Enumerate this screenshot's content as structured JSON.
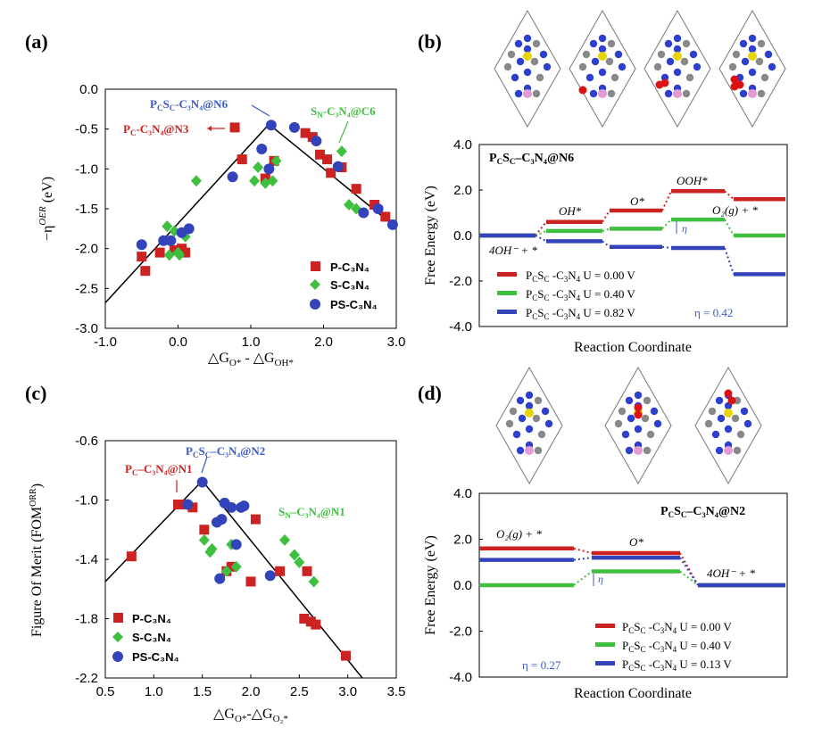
{
  "panel_labels": [
    "(a)",
    "(b)",
    "(c)",
    "(d)"
  ],
  "colors": {
    "red": "#cc2222",
    "green": "#3fbf3f",
    "blue": "#3344bb",
    "darkred": "#b22222",
    "annot_blue": "#3a5bc7"
  },
  "chart_data": [
    {
      "type": "scatter",
      "panel": "(a)",
      "ylabel": "−η",
      "ylabel_sup": "OER",
      "ylabel_unit": "(eV)",
      "xlabel": "△G",
      "xlabel_sub1": "O*",
      "xlabel_mid": " - △G",
      "xlabel_sub2": "OH*",
      "xlim": [
        -1.0,
        3.0
      ],
      "ylim": [
        -3.0,
        0.0
      ],
      "xticks": [
        "-1.0",
        "0.0",
        "1.0",
        "2.0",
        "3.0"
      ],
      "yticks": [
        "0.0",
        "-0.5",
        "-1.0",
        "-1.5",
        "-2.0",
        "-2.5",
        "-3.0"
      ],
      "volcano_line": [
        [
          -1.0,
          -2.68
        ],
        [
          1.25,
          -0.44
        ],
        [
          2.95,
          -1.7
        ]
      ],
      "legend": [
        "P-C₃N₄",
        "S-C₃N₄",
        "PS-C₃N₄"
      ],
      "annotations": [
        {
          "text": "P",
          "sub": "C",
          "rest": "-C₃N₄@N3",
          "color": "#cc2222"
        },
        {
          "text": "P",
          "sub": "C",
          "mid": "S",
          "sub2": "C",
          "rest": "-C₃N₄@N6",
          "color": "#3a5bc7"
        },
        {
          "text": "S",
          "sub": "N",
          "rest": "-C₃N₄@C6",
          "color": "#3fbf3f"
        }
      ],
      "series": [
        {
          "name": "P-C3N4",
          "points": [
            [
              -0.5,
              -2.1
            ],
            [
              -0.45,
              -2.28
            ],
            [
              -0.25,
              -2.05
            ],
            [
              -0.05,
              -2.02
            ],
            [
              0.05,
              -2.0
            ],
            [
              0.1,
              -2.05
            ],
            [
              0.78,
              -0.48
            ],
            [
              0.88,
              -0.88
            ],
            [
              1.2,
              -1.12
            ],
            [
              1.32,
              -0.9
            ],
            [
              1.75,
              -0.55
            ],
            [
              1.85,
              -0.6
            ],
            [
              1.95,
              -0.82
            ],
            [
              2.05,
              -0.88
            ],
            [
              2.1,
              -1.05
            ],
            [
              2.25,
              -0.98
            ],
            [
              2.45,
              -1.25
            ],
            [
              2.7,
              -1.45
            ],
            [
              2.85,
              -1.6
            ]
          ]
        },
        {
          "name": "S-C3N4",
          "points": [
            [
              -0.15,
              -1.72
            ],
            [
              -0.12,
              -2.08
            ],
            [
              -0.05,
              -1.78
            ],
            [
              0.0,
              -2.05
            ],
            [
              0.02,
              -2.08
            ],
            [
              0.1,
              -1.85
            ],
            [
              0.25,
              -1.15
            ],
            [
              1.05,
              -1.15
            ],
            [
              1.1,
              -0.98
            ],
            [
              1.2,
              -1.18
            ],
            [
              1.3,
              -1.15
            ],
            [
              1.35,
              -0.9
            ],
            [
              2.25,
              -0.78
            ],
            [
              2.35,
              -1.45
            ],
            [
              2.45,
              -1.5
            ]
          ]
        },
        {
          "name": "PS-C3N4",
          "points": [
            [
              -0.5,
              -1.95
            ],
            [
              -0.2,
              -1.9
            ],
            [
              -0.1,
              -1.9
            ],
            [
              0.05,
              -1.8
            ],
            [
              0.15,
              -1.75
            ],
            [
              0.75,
              -1.1
            ],
            [
              1.15,
              -0.75
            ],
            [
              1.25,
              -1.0
            ],
            [
              1.28,
              -0.45
            ],
            [
              1.6,
              -0.48
            ],
            [
              1.9,
              -0.65
            ],
            [
              2.2,
              -0.97
            ],
            [
              2.55,
              -1.55
            ],
            [
              2.75,
              -1.5
            ],
            [
              2.95,
              -1.7
            ]
          ]
        }
      ]
    },
    {
      "type": "line",
      "panel": "(b)",
      "title_parts": {
        "a": "P",
        "a_sub": "C",
        "b": "S",
        "b_sub": "C",
        "rest": "–C₃N₄@N6"
      },
      "ylabel": "Free Energy (eV)",
      "xlabel": "Reaction Coordinate",
      "ylim": [
        -4.0,
        4.0
      ],
      "yticks": [
        "4.0",
        "2.0",
        "0.0",
        "-2.0",
        "-4.0"
      ],
      "steps": [
        "4OH⁻ + *",
        "OH*",
        "O*",
        "OOH*",
        "O₂(g) + *"
      ],
      "series": [
        {
          "name": "U = 0.00 V",
          "label_prefix": "P",
          "values": [
            0.0,
            0.6,
            1.1,
            1.95,
            1.6
          ],
          "color": "#cc2222"
        },
        {
          "name": "U = 0.40 V",
          "label_prefix": "P",
          "values": [
            0.0,
            0.2,
            0.3,
            0.7,
            0.0
          ],
          "color": "#3fbf3f"
        },
        {
          "name": "U = 0.82 V",
          "label_prefix": "P",
          "values": [
            0.0,
            -0.25,
            -0.5,
            -0.55,
            -1.7
          ],
          "color": "#3344bb"
        }
      ],
      "legend_labels": [
        "U = 0.00 V",
        "U = 0.40 V",
        "U = 0.82 V"
      ],
      "eta_text": "η = 0.42",
      "eta_symbol": "η"
    },
    {
      "type": "scatter",
      "panel": "(c)",
      "ylabel": "Figure Of Merit (FOM",
      "ylabel_sup": "ORR",
      "ylabel_end": ")",
      "xlabel": "△G",
      "xlabel_sub1": "O*",
      "xlabel_mid": "-△G",
      "xlabel_sub2": "O₂*",
      "xlim": [
        0.5,
        3.5
      ],
      "ylim": [
        -2.2,
        -0.6
      ],
      "xticks": [
        "0.5",
        "1.0",
        "1.5",
        "2.0",
        "2.5",
        "3.0",
        "3.5"
      ],
      "yticks": [
        "-0.6",
        "-1.0",
        "-1.4",
        "-1.8",
        "-2.2"
      ],
      "volcano_line": [
        [
          0.5,
          -1.55
        ],
        [
          1.5,
          -0.87
        ],
        [
          3.15,
          -2.2
        ]
      ],
      "legend": [
        "P-C₃N₄",
        "S-C₃N₄",
        "PS-C₃N₄"
      ],
      "annotations": [
        {
          "text": "P",
          "sub": "C",
          "rest": "–C₃N₄@N1",
          "color": "#cc2222"
        },
        {
          "text": "P",
          "sub": "C",
          "mid": "S",
          "sub2": "C",
          "rest": "–C₃N₄@N2",
          "color": "#3a5bc7"
        },
        {
          "text": "S",
          "sub": "N",
          "rest": "–C₃N₄@N1",
          "color": "#3fbf3f"
        }
      ],
      "series": [
        {
          "name": "P-C3N4",
          "points": [
            [
              0.77,
              -1.38
            ],
            [
              1.25,
              -1.03
            ],
            [
              1.3,
              -1.03
            ],
            [
              1.4,
              -1.05
            ],
            [
              1.52,
              -1.2
            ],
            [
              1.75,
              -1.48
            ],
            [
              1.8,
              -1.45
            ],
            [
              2.0,
              -1.55
            ],
            [
              2.05,
              -1.13
            ],
            [
              2.3,
              -1.48
            ],
            [
              2.58,
              -1.48
            ],
            [
              2.55,
              -1.8
            ],
            [
              2.62,
              -1.82
            ],
            [
              2.67,
              -1.84
            ],
            [
              2.98,
              -2.05
            ]
          ]
        },
        {
          "name": "S-C3N4",
          "points": [
            [
              1.52,
              -1.27
            ],
            [
              1.58,
              -1.35
            ],
            [
              1.6,
              -1.33
            ],
            [
              1.75,
              -1.48
            ],
            [
              1.8,
              -1.3
            ],
            [
              1.85,
              -1.45
            ],
            [
              2.35,
              -1.27
            ],
            [
              2.45,
              -1.37
            ],
            [
              2.5,
              -1.42
            ],
            [
              2.65,
              -1.55
            ]
          ]
        },
        {
          "name": "PS-C3N4",
          "points": [
            [
              1.35,
              -1.03
            ],
            [
              1.5,
              -0.88
            ],
            [
              1.65,
              -1.15
            ],
            [
              1.68,
              -1.53
            ],
            [
              1.7,
              -1.13
            ],
            [
              1.73,
              -1.02
            ],
            [
              1.8,
              -1.05
            ],
            [
              1.85,
              -1.3
            ],
            [
              1.9,
              -1.05
            ],
            [
              1.93,
              -1.04
            ],
            [
              2.2,
              -1.51
            ]
          ]
        }
      ]
    },
    {
      "type": "line",
      "panel": "(d)",
      "title_parts": {
        "a": "P",
        "a_sub": "C",
        "b": "S",
        "b_sub": "C",
        "rest": "–C₃N₄@N2"
      },
      "ylabel": "Free Energy (eV)",
      "xlabel": "Reaction Coordinate",
      "ylim": [
        -4.0,
        4.0
      ],
      "yticks": [
        "4.0",
        "2.0",
        "0.0",
        "-2.0",
        "-4.0"
      ],
      "steps": [
        "O₂(g) + *",
        "O*",
        "4OH⁻ + *"
      ],
      "series": [
        {
          "name": "U = 0.00 V",
          "label_prefix": "P",
          "values": [
            1.6,
            1.4,
            0.0
          ],
          "color": "#cc2222"
        },
        {
          "name": "U = 0.40 V",
          "label_prefix": "P",
          "values": [
            0.0,
            0.6,
            0.0
          ],
          "color": "#3fbf3f"
        },
        {
          "name": "U = 0.13 V",
          "label_prefix": "P",
          "values": [
            1.1,
            1.2,
            0.0
          ],
          "color": "#3344bb"
        }
      ],
      "legend_labels": [
        "U = 0.00 V",
        "U = 0.40 V",
        "U = 0.13 V"
      ],
      "eta_text": "η = 0.27",
      "eta_symbol": "η"
    }
  ]
}
